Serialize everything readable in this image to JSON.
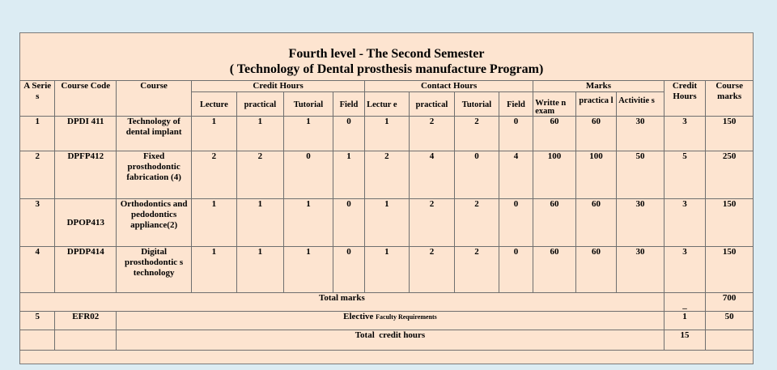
{
  "title": {
    "line1": "Fourth level - The Second Semester",
    "line2": "( Technology of Dental prosthesis manufacture Program)"
  },
  "headers": {
    "series": "A Serie s",
    "course_code": "Course Code",
    "course": "Course",
    "credit_hours": "Credit Hours",
    "contact_hours": "Contact Hours",
    "marks": "Marks",
    "credit_hours_total": "Credit Hours",
    "course_marks": "Course marks",
    "credit_sub": [
      "Lecture",
      "practical",
      "Tutorial",
      "Field"
    ],
    "contact_sub": [
      "Lectur e",
      "practical",
      "Tutorial",
      "Field"
    ],
    "marks_sub": [
      "Writte n exam",
      "practica l",
      "Activitie s"
    ]
  },
  "rows": [
    {
      "series": "1",
      "code": "DPDI 411",
      "course": "Technology of dental implant",
      "credit": [
        "1",
        "1",
        "1",
        "0"
      ],
      "contact": [
        "1",
        "2",
        "2",
        "0"
      ],
      "marks": [
        "60",
        "60",
        "30"
      ],
      "credit_hours": "3",
      "course_marks": "150"
    },
    {
      "series": "2",
      "code": "DPFP412",
      "course": "Fixed prosthodontic fabrication (4)",
      "credit": [
        "2",
        "2",
        "0",
        "1"
      ],
      "contact": [
        "2",
        "4",
        "0",
        "4"
      ],
      "marks": [
        "100",
        "100",
        "50"
      ],
      "credit_hours": "5",
      "course_marks": "250"
    },
    {
      "series": "3",
      "code": "DPOP413",
      "course": "Orthodontics and pedodontics appliance(2)",
      "credit": [
        "1",
        "1",
        "1",
        "0"
      ],
      "contact": [
        "1",
        "2",
        "2",
        "0"
      ],
      "marks": [
        "60",
        "60",
        "30"
      ],
      "credit_hours": "3",
      "course_marks": "150"
    },
    {
      "series": "4",
      "code": "DPDP414",
      "course": "Digital prosthodontic s technology",
      "credit": [
        "1",
        "1",
        "1",
        "0"
      ],
      "contact": [
        "1",
        "2",
        "2",
        "0"
      ],
      "marks": [
        "60",
        "60",
        "30"
      ],
      "credit_hours": "3",
      "course_marks": "150"
    }
  ],
  "total_marks": {
    "label": "Total marks",
    "credit": "_",
    "marks": "700"
  },
  "elective": {
    "series": "5",
    "code": "EFR02",
    "label_main": "Elective",
    "label_small": "Faculty Requirements",
    "credit": "1",
    "marks": "50"
  },
  "total_credit": {
    "label": "Total  credit hours",
    "credit": "15"
  }
}
